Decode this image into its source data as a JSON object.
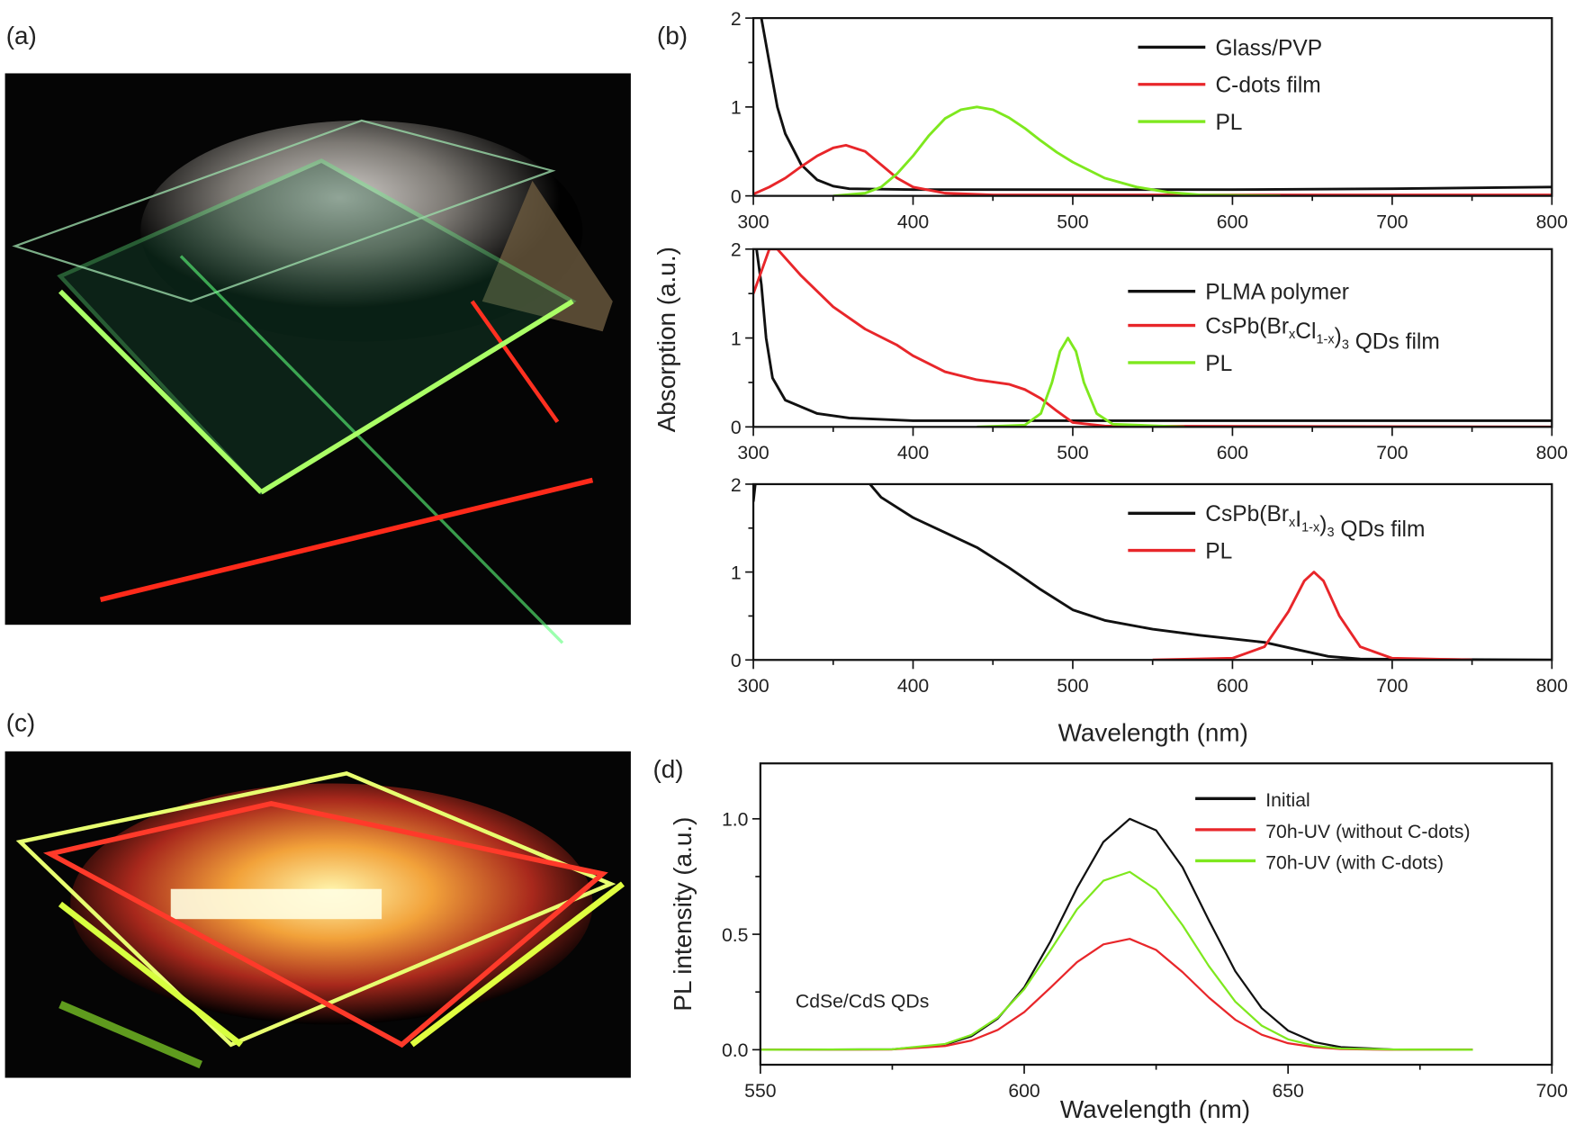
{
  "panel_labels": {
    "a": "(a)",
    "b": "(b)",
    "c": "(c)",
    "d": "(d)"
  },
  "panel_b": {
    "ylabel": "Absorption (a.u.)",
    "xlabel": "Wavelength (nm)"
  },
  "colors": {
    "black": "#111111",
    "red": "#e8262a",
    "green": "#7ee81e"
  },
  "photos": {
    "a": {
      "description_icon": "photo-green-glowing-glass-plates"
    },
    "c": {
      "description_icon": "photo-red-yellow-glowing-glass-plates"
    }
  },
  "chart_data": [
    {
      "type": "line",
      "panel": "b-top",
      "xlim": [
        300,
        800
      ],
      "ylim": [
        0,
        2
      ],
      "xticks": [
        300,
        400,
        500,
        600,
        700,
        800
      ],
      "yticks": [
        0,
        1,
        2
      ],
      "series": [
        {
          "name": "Glass/PVP",
          "color": "#111111",
          "points": [
            [
              305,
              2.0
            ],
            [
              310,
              1.5
            ],
            [
              315,
              1.0
            ],
            [
              320,
              0.7
            ],
            [
              330,
              0.35
            ],
            [
              340,
              0.18
            ],
            [
              350,
              0.11
            ],
            [
              360,
              0.08
            ],
            [
              400,
              0.07
            ],
            [
              600,
              0.07
            ],
            [
              700,
              0.08
            ],
            [
              800,
              0.1
            ]
          ]
        },
        {
          "name": "C-dots film",
          "color": "#e8262a",
          "points": [
            [
              300,
              0.02
            ],
            [
              310,
              0.1
            ],
            [
              320,
              0.2
            ],
            [
              330,
              0.33
            ],
            [
              340,
              0.45
            ],
            [
              350,
              0.54
            ],
            [
              358,
              0.57
            ],
            [
              370,
              0.5
            ],
            [
              380,
              0.35
            ],
            [
              390,
              0.2
            ],
            [
              400,
              0.1
            ],
            [
              420,
              0.03
            ],
            [
              450,
              0.01
            ],
            [
              800,
              0.01
            ]
          ]
        },
        {
          "name": "PL",
          "color": "#7ee81e",
          "points": [
            [
              350,
              0
            ],
            [
              370,
              0.03
            ],
            [
              380,
              0.1
            ],
            [
              390,
              0.25
            ],
            [
              400,
              0.45
            ],
            [
              410,
              0.68
            ],
            [
              420,
              0.87
            ],
            [
              430,
              0.97
            ],
            [
              440,
              1.0
            ],
            [
              450,
              0.97
            ],
            [
              460,
              0.88
            ],
            [
              470,
              0.76
            ],
            [
              480,
              0.62
            ],
            [
              490,
              0.49
            ],
            [
              500,
              0.38
            ],
            [
              520,
              0.2
            ],
            [
              540,
              0.1
            ],
            [
              560,
              0.04
            ],
            [
              580,
              0.01
            ],
            [
              630,
              0
            ]
          ]
        }
      ]
    },
    {
      "type": "line",
      "panel": "b-middle",
      "xlim": [
        300,
        800
      ],
      "ylim": [
        0,
        2
      ],
      "xticks": [
        300,
        400,
        500,
        600,
        700,
        800
      ],
      "yticks": [
        0,
        1,
        2
      ],
      "series": [
        {
          "name": "PLMA polymer",
          "color": "#111111",
          "points": [
            [
              302,
              2.0
            ],
            [
              305,
              1.6
            ],
            [
              308,
              1.0
            ],
            [
              312,
              0.55
            ],
            [
              320,
              0.3
            ],
            [
              340,
              0.15
            ],
            [
              360,
              0.1
            ],
            [
              400,
              0.07
            ],
            [
              800,
              0.07
            ]
          ]
        },
        {
          "name": "CsPb(BrxCl1-x)3 QDs film",
          "name_parts": [
            [
              "CsPb(Br",
              ""
            ],
            [
              "x",
              "sub"
            ],
            [
              "Cl",
              ""
            ],
            [
              "1-x",
              "sub"
            ],
            [
              ")",
              ""
            ],
            [
              "3",
              "sub"
            ],
            [
              " QDs film",
              ""
            ]
          ],
          "color": "#e8262a",
          "points": [
            [
              300,
              1.5
            ],
            [
              305,
              1.75
            ],
            [
              310,
              2.0
            ],
            [
              315,
              2.0
            ],
            [
              330,
              1.7
            ],
            [
              350,
              1.35
            ],
            [
              370,
              1.1
            ],
            [
              390,
              0.92
            ],
            [
              400,
              0.8
            ],
            [
              420,
              0.62
            ],
            [
              440,
              0.53
            ],
            [
              460,
              0.48
            ],
            [
              470,
              0.42
            ],
            [
              480,
              0.32
            ],
            [
              490,
              0.18
            ],
            [
              500,
              0.05
            ],
            [
              520,
              0.01
            ],
            [
              800,
              0
            ]
          ]
        },
        {
          "name": "PL",
          "color": "#7ee81e",
          "points": [
            [
              440,
              0
            ],
            [
              470,
              0.02
            ],
            [
              480,
              0.15
            ],
            [
              487,
              0.5
            ],
            [
              492,
              0.85
            ],
            [
              497,
              1.0
            ],
            [
              502,
              0.85
            ],
            [
              507,
              0.5
            ],
            [
              515,
              0.15
            ],
            [
              525,
              0.03
            ],
            [
              570,
              0
            ]
          ]
        }
      ]
    },
    {
      "type": "line",
      "panel": "b-bottom",
      "xlim": [
        300,
        800
      ],
      "ylim": [
        0,
        2
      ],
      "xticks": [
        300,
        400,
        500,
        600,
        700,
        800
      ],
      "yticks": [
        0,
        1,
        2
      ],
      "series": [
        {
          "name": "CsPb(BrxI1-x)3 QDs film",
          "name_parts": [
            [
              "CsPb(Br",
              ""
            ],
            [
              "x",
              "sub"
            ],
            [
              "I",
              ""
            ],
            [
              "1-x",
              "sub"
            ],
            [
              ")",
              ""
            ],
            [
              "3",
              "sub"
            ],
            [
              " QDs film",
              ""
            ]
          ],
          "color": "#111111",
          "points": [
            [
              300,
              1.8
            ],
            [
              303,
              2.3
            ],
            [
              370,
              2.3
            ],
            [
              373,
              2.0
            ],
            [
              380,
              1.85
            ],
            [
              400,
              1.62
            ],
            [
              420,
              1.45
            ],
            [
              440,
              1.28
            ],
            [
              460,
              1.05
            ],
            [
              480,
              0.8
            ],
            [
              500,
              0.57
            ],
            [
              520,
              0.45
            ],
            [
              550,
              0.35
            ],
            [
              580,
              0.28
            ],
            [
              620,
              0.2
            ],
            [
              640,
              0.12
            ],
            [
              660,
              0.04
            ],
            [
              680,
              0.01
            ],
            [
              800,
              0
            ]
          ]
        },
        {
          "name": "PL",
          "color": "#e8262a",
          "points": [
            [
              550,
              0
            ],
            [
              600,
              0.02
            ],
            [
              620,
              0.15
            ],
            [
              635,
              0.55
            ],
            [
              645,
              0.9
            ],
            [
              651,
              1.0
            ],
            [
              657,
              0.9
            ],
            [
              667,
              0.5
            ],
            [
              680,
              0.15
            ],
            [
              700,
              0.02
            ],
            [
              750,
              0
            ]
          ]
        }
      ]
    },
    {
      "type": "line",
      "panel": "d",
      "xlabel": "Wavelength (nm)",
      "ylabel": "PL intensity (a.u.)",
      "annotation": "CdSe/CdS QDs",
      "xlim": [
        550,
        700
      ],
      "ylim": [
        -0.065,
        1.24
      ],
      "xticks": [
        550,
        600,
        650,
        700
      ],
      "yticks": [
        0.0,
        0.5,
        1.0
      ],
      "ytick_labels": [
        "0.0",
        "0.5",
        "1.0"
      ],
      "x": [
        550,
        575,
        585,
        590,
        595,
        600,
        605,
        610,
        615,
        620,
        625,
        630,
        635,
        640,
        645,
        650,
        655,
        660,
        670,
        685
      ],
      "series": [
        {
          "name": "Initial",
          "color": "#111111",
          "values": [
            0,
            0.002,
            0.022,
            0.058,
            0.135,
            0.27,
            0.47,
            0.7,
            0.9,
            1.0,
            0.95,
            0.79,
            0.56,
            0.34,
            0.18,
            0.083,
            0.033,
            0.011,
            0.001,
            0
          ]
        },
        {
          "name": "70h-UV (without C-dots)",
          "color": "#e8262a",
          "values": [
            0,
            0.001,
            0.016,
            0.04,
            0.086,
            0.163,
            0.269,
            0.379,
            0.456,
            0.48,
            0.432,
            0.336,
            0.226,
            0.13,
            0.065,
            0.028,
            0.011,
            0.003,
            0,
            0
          ]
        },
        {
          "name": "70h-UV (with C-dots)",
          "color": "#7ee81e",
          "values": [
            0,
            0.002,
            0.025,
            0.064,
            0.139,
            0.262,
            0.431,
            0.608,
            0.732,
            0.77,
            0.693,
            0.539,
            0.362,
            0.208,
            0.104,
            0.045,
            0.017,
            0.005,
            0.001,
            0
          ]
        }
      ]
    }
  ]
}
